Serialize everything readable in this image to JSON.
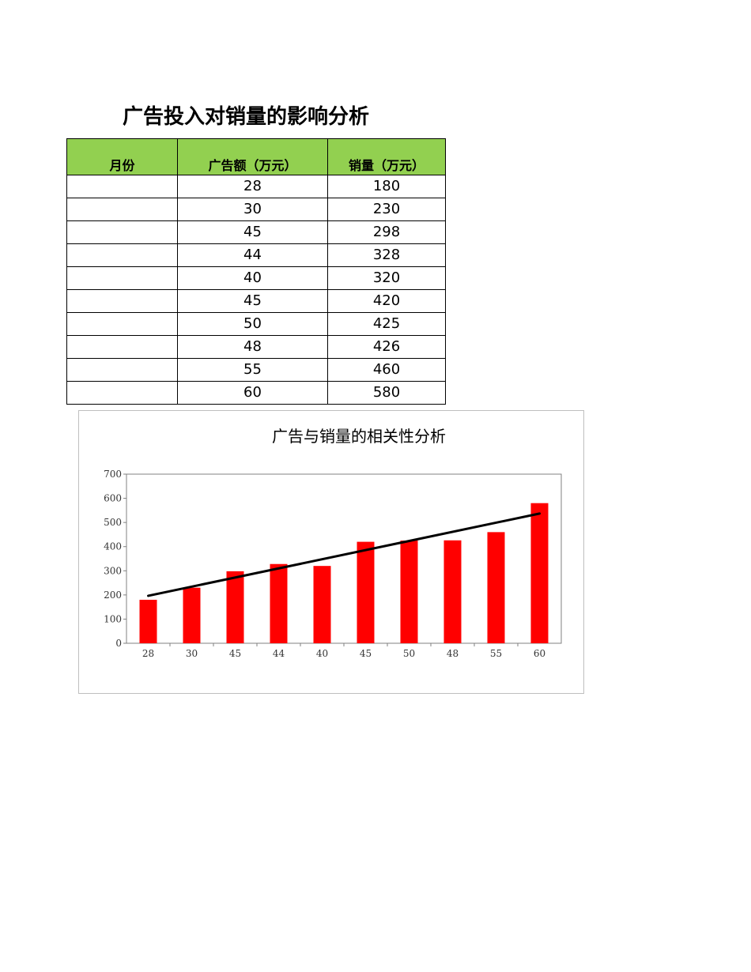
{
  "page": {
    "title": "广告投入对销量的影响分析"
  },
  "table": {
    "headers": {
      "month": "月份",
      "ad_spend": "广告额（万元）",
      "sales": "销量（万元）"
    },
    "rows": [
      {
        "month": "",
        "ad_spend": "28",
        "sales": "180"
      },
      {
        "month": "",
        "ad_spend": "30",
        "sales": "230"
      },
      {
        "month": "",
        "ad_spend": "45",
        "sales": "298"
      },
      {
        "month": "",
        "ad_spend": "44",
        "sales": "328"
      },
      {
        "month": "",
        "ad_spend": "40",
        "sales": "320"
      },
      {
        "month": "",
        "ad_spend": "45",
        "sales": "420"
      },
      {
        "month": "",
        "ad_spend": "50",
        "sales": "425"
      },
      {
        "month": "",
        "ad_spend": "48",
        "sales": "426"
      },
      {
        "month": "",
        "ad_spend": "55",
        "sales": "460"
      },
      {
        "month": "",
        "ad_spend": "60",
        "sales": "580"
      }
    ]
  },
  "chart_data": {
    "type": "bar",
    "title": "广告与销量的相关性分析",
    "xlabel": "",
    "ylabel": "",
    "categories": [
      "28",
      "30",
      "45",
      "44",
      "40",
      "45",
      "50",
      "48",
      "55",
      "60"
    ],
    "series": [
      {
        "values": [
          180,
          230,
          298,
          328,
          320,
          420,
          425,
          426,
          460,
          580
        ],
        "color": "#ff0000"
      }
    ],
    "trendline": {
      "type": "linear",
      "color": "#000000"
    },
    "ylim": [
      0,
      700
    ],
    "yticks": [
      "0",
      "100",
      "200",
      "300",
      "400",
      "500",
      "600",
      "700"
    ],
    "grid": false,
    "legend": "none"
  }
}
